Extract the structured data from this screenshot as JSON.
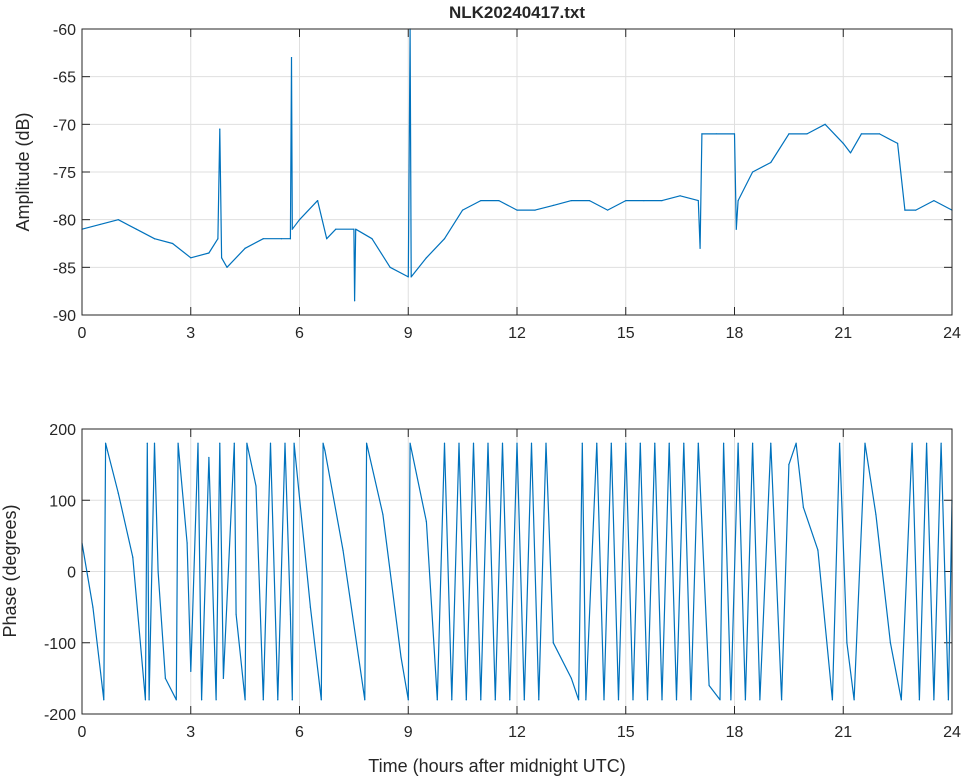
{
  "chart_data": [
    {
      "type": "line",
      "title": "NLK20240417.txt",
      "xlabel": "",
      "ylabel": "Amplitude (dB)",
      "xlim": [
        0,
        24
      ],
      "ylim": [
        -90,
        -60
      ],
      "grid": true,
      "color": "#0072BD",
      "xticks": [
        "0",
        "3",
        "6",
        "9",
        "12",
        "15",
        "18",
        "21",
        "24"
      ],
      "yticks": [
        "-60",
        "-65",
        "-70",
        "-75",
        "-80",
        "-85",
        "-90"
      ],
      "x": [
        0,
        0.5,
        1,
        1.5,
        2,
        2.5,
        3,
        3.5,
        3.75,
        3.8,
        3.85,
        4,
        4.5,
        5,
        5.5,
        5.75,
        5.78,
        5.8,
        6,
        6.5,
        6.75,
        7,
        7.5,
        7.52,
        7.55,
        8,
        8.5,
        9,
        9.05,
        9.08,
        9.5,
        10,
        10.5,
        11,
        11.5,
        12,
        12.5,
        13,
        13.5,
        14,
        14.5,
        15,
        15.5,
        16,
        16.5,
        17,
        17.05,
        17.1,
        17.5,
        18,
        18.05,
        18.1,
        18.5,
        19,
        19.5,
        20,
        20.5,
        21,
        21.2,
        21.5,
        22,
        22.5,
        22.7,
        23,
        23.5,
        24
      ],
      "y": [
        -81,
        -80.5,
        -80,
        -81,
        -82,
        -82.5,
        -84,
        -83.5,
        -82,
        -70.5,
        -84,
        -85,
        -83,
        -82,
        -82,
        -82,
        -63,
        -81,
        -80,
        -78,
        -82,
        -81,
        -81,
        -88.5,
        -81,
        -82,
        -85,
        -86,
        -60,
        -86,
        -84,
        -82,
        -79,
        -78,
        -78,
        -79,
        -79,
        -78.5,
        -78,
        -78,
        -79,
        -78,
        -78,
        -78,
        -77.5,
        -78,
        -83,
        -71,
        -71,
        -71,
        -81,
        -78,
        -75,
        -74,
        -71,
        -71,
        -70,
        -72,
        -73,
        -71,
        -71,
        -72,
        -79,
        -79,
        -78,
        -79
      ]
    },
    {
      "type": "line",
      "title": "",
      "xlabel": "Time (hours after midnight UTC)",
      "ylabel": "Phase (degrees)",
      "xlim": [
        0,
        24
      ],
      "ylim": [
        -200,
        200
      ],
      "grid": true,
      "color": "#0072BD",
      "xticks": [
        "0",
        "3",
        "6",
        "9",
        "12",
        "15",
        "18",
        "21",
        "24"
      ],
      "yticks": [
        "200",
        "100",
        "0",
        "-100",
        "-200"
      ],
      "x": [
        0,
        0.3,
        0.6,
        0.65,
        0.7,
        1.0,
        1.4,
        1.75,
        1.8,
        1.85,
        2.0,
        2.1,
        2.3,
        2.6,
        2.65,
        2.9,
        3.0,
        3.2,
        3.3,
        3.5,
        3.7,
        3.8,
        3.9,
        4.2,
        4.25,
        4.5,
        4.55,
        4.8,
        5.0,
        5.2,
        5.4,
        5.6,
        5.75,
        5.8,
        5.85,
        6.3,
        6.6,
        6.65,
        6.7,
        7.2,
        7.8,
        7.85,
        8.3,
        8.8,
        9.0,
        9.05,
        9.5,
        9.8,
        10.0,
        10.2,
        10.4,
        10.6,
        10.8,
        11.0,
        11.2,
        11.4,
        11.6,
        11.8,
        12.0,
        12.2,
        12.4,
        12.6,
        12.8,
        13.0,
        13.5,
        13.7,
        13.8,
        13.9,
        14.2,
        14.4,
        14.6,
        14.8,
        15.0,
        15.2,
        15.4,
        15.6,
        15.8,
        16.0,
        16.2,
        16.4,
        16.6,
        16.8,
        17.0,
        17.3,
        17.6,
        17.7,
        17.9,
        18.1,
        18.3,
        18.5,
        18.7,
        19.0,
        19.3,
        19.5,
        19.7,
        19.9,
        20.3,
        20.7,
        20.9,
        21.1,
        21.3,
        21.6,
        21.9,
        22.3,
        22.6,
        22.9,
        23.1,
        23.3,
        23.5,
        23.7,
        23.9,
        24.0
      ],
      "y": [
        40,
        -50,
        -180,
        180,
        170,
        110,
        20,
        -180,
        180,
        -180,
        180,
        0,
        -150,
        -180,
        180,
        40,
        -140,
        180,
        -180,
        160,
        -180,
        180,
        -150,
        180,
        -60,
        -180,
        180,
        120,
        -180,
        180,
        -180,
        180,
        -60,
        -180,
        180,
        -50,
        -180,
        180,
        170,
        30,
        -180,
        180,
        80,
        -120,
        -180,
        180,
        70,
        -180,
        180,
        -180,
        180,
        -180,
        180,
        -180,
        180,
        -180,
        180,
        -180,
        180,
        -180,
        180,
        -180,
        180,
        -100,
        -150,
        -180,
        180,
        -180,
        180,
        -180,
        180,
        -180,
        180,
        -180,
        180,
        -180,
        180,
        -180,
        180,
        -180,
        180,
        -180,
        180,
        -160,
        -180,
        180,
        -180,
        180,
        -180,
        180,
        -180,
        180,
        -180,
        150,
        180,
        90,
        30,
        -180,
        180,
        -100,
        -180,
        180,
        80,
        -100,
        -180,
        180,
        -180,
        180,
        -180,
        180,
        -180,
        100
      ]
    }
  ]
}
